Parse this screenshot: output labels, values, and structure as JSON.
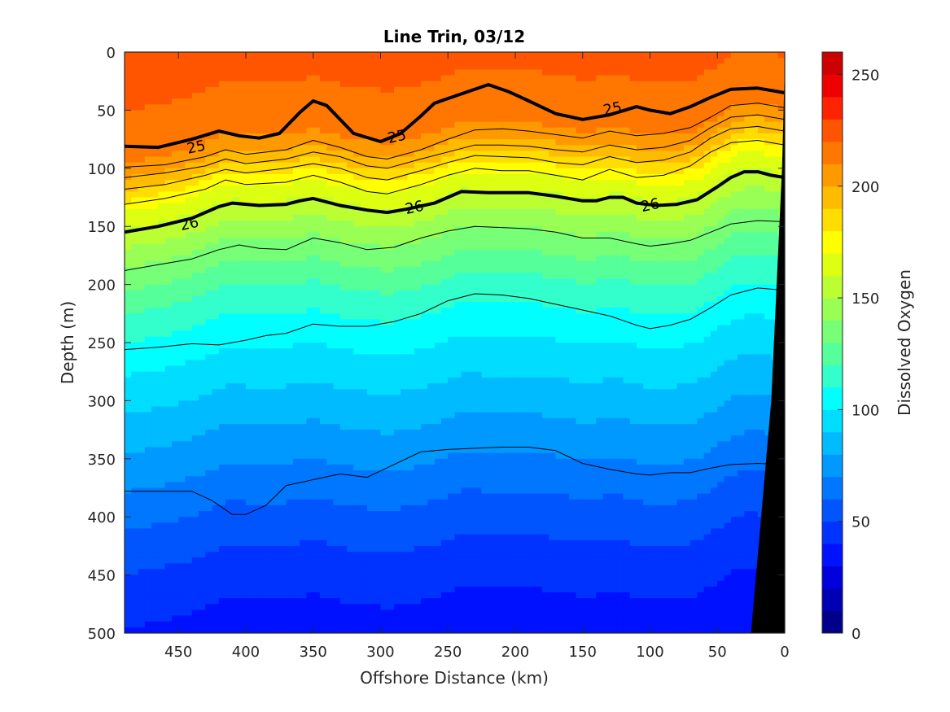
{
  "chart_data": {
    "type": "contour",
    "title": "Line Trin, 03/12",
    "xlabel": "Offshore Distance (km)",
    "ylabel": "Depth (m)",
    "colorbar_label": "Dissolved Oxygen",
    "xlim": [
      490,
      0
    ],
    "ylim": [
      0,
      500
    ],
    "x_reversed": true,
    "y_reversed": true,
    "xticks": [
      450,
      400,
      350,
      300,
      250,
      200,
      150,
      100,
      50,
      0
    ],
    "yticks": [
      0,
      50,
      100,
      150,
      200,
      250,
      300,
      350,
      400,
      450,
      500
    ],
    "colorbar": {
      "range": [
        0,
        260
      ],
      "ticks": [
        0,
        50,
        100,
        150,
        200,
        250
      ],
      "levels": [
        0,
        10,
        20,
        30,
        40,
        50,
        60,
        70,
        80,
        90,
        100,
        110,
        120,
        130,
        140,
        150,
        160,
        170,
        180,
        190,
        200,
        210,
        220,
        230,
        240,
        250,
        260
      ],
      "colors": [
        "#00008b",
        "#0000b4",
        "#0000dd",
        "#0011ff",
        "#0033ff",
        "#0055ff",
        "#0077ff",
        "#0099ff",
        "#00bbff",
        "#00ddff",
        "#00ffff",
        "#33ffcc",
        "#55ff99",
        "#77ff77",
        "#99ff55",
        "#bbff33",
        "#ddff11",
        "#ffff00",
        "#ffdd00",
        "#ffbb00",
        "#ff9900",
        "#ff7700",
        "#ff5500",
        "#ff2200",
        "#ee0000",
        "#cc0000",
        "#aa0000"
      ]
    },
    "oxygen_depth_profile": [
      {
        "depth": 0,
        "value": 222
      },
      {
        "depth": 50,
        "value": 218
      },
      {
        "depth": 70,
        "value": 210
      },
      {
        "depth": 90,
        "value": 195
      },
      {
        "depth": 110,
        "value": 172
      },
      {
        "depth": 130,
        "value": 158
      },
      {
        "depth": 160,
        "value": 140
      },
      {
        "depth": 200,
        "value": 120
      },
      {
        "depth": 240,
        "value": 104
      },
      {
        "depth": 280,
        "value": 92
      },
      {
        "depth": 320,
        "value": 80
      },
      {
        "depth": 360,
        "value": 68
      },
      {
        "depth": 400,
        "value": 56
      },
      {
        "depth": 440,
        "value": 46
      },
      {
        "depth": 480,
        "value": 38
      },
      {
        "depth": 500,
        "value": 34
      }
    ],
    "density_contours": [
      {
        "label": "25",
        "bold": true,
        "points": [
          [
            490,
            81
          ],
          [
            465,
            82
          ],
          [
            440,
            75
          ],
          [
            420,
            68
          ],
          [
            405,
            72
          ],
          [
            390,
            74
          ],
          [
            375,
            70
          ],
          [
            360,
            52
          ],
          [
            350,
            42
          ],
          [
            340,
            46
          ],
          [
            320,
            70
          ],
          [
            300,
            77
          ],
          [
            285,
            70
          ],
          [
            270,
            55
          ],
          [
            260,
            44
          ],
          [
            240,
            36
          ],
          [
            220,
            28
          ],
          [
            205,
            34
          ],
          [
            190,
            42
          ],
          [
            170,
            53
          ],
          [
            150,
            58
          ],
          [
            130,
            54
          ],
          [
            110,
            47
          ],
          [
            100,
            50
          ],
          [
            85,
            53
          ],
          [
            70,
            47
          ],
          [
            55,
            39
          ],
          [
            40,
            32
          ],
          [
            20,
            31
          ],
          [
            0,
            35
          ]
        ]
      },
      {
        "label": "",
        "bold": false,
        "points": [
          [
            490,
            99
          ],
          [
            460,
            97
          ],
          [
            430,
            90
          ],
          [
            415,
            84
          ],
          [
            400,
            88
          ],
          [
            370,
            84
          ],
          [
            350,
            76
          ],
          [
            330,
            82
          ],
          [
            310,
            90
          ],
          [
            295,
            92
          ],
          [
            270,
            84
          ],
          [
            250,
            75
          ],
          [
            230,
            67
          ],
          [
            210,
            66
          ],
          [
            190,
            68
          ],
          [
            170,
            71
          ],
          [
            150,
            74
          ],
          [
            130,
            68
          ],
          [
            110,
            72
          ],
          [
            90,
            70
          ],
          [
            70,
            65
          ],
          [
            55,
            56
          ],
          [
            40,
            46
          ],
          [
            20,
            44
          ],
          [
            0,
            48
          ]
        ]
      },
      {
        "label": "",
        "bold": false,
        "points": [
          [
            490,
            108
          ],
          [
            460,
            104
          ],
          [
            430,
            98
          ],
          [
            415,
            92
          ],
          [
            400,
            96
          ],
          [
            370,
            92
          ],
          [
            350,
            86
          ],
          [
            330,
            90
          ],
          [
            310,
            98
          ],
          [
            295,
            100
          ],
          [
            270,
            92
          ],
          [
            250,
            86
          ],
          [
            230,
            80
          ],
          [
            210,
            80
          ],
          [
            190,
            81
          ],
          [
            170,
            84
          ],
          [
            150,
            86
          ],
          [
            130,
            80
          ],
          [
            110,
            84
          ],
          [
            90,
            82
          ],
          [
            70,
            76
          ],
          [
            55,
            65
          ],
          [
            40,
            56
          ],
          [
            20,
            54
          ],
          [
            0,
            58
          ]
        ]
      },
      {
        "label": "",
        "bold": false,
        "points": [
          [
            490,
            118
          ],
          [
            460,
            114
          ],
          [
            430,
            106
          ],
          [
            415,
            101
          ],
          [
            400,
            104
          ],
          [
            370,
            100
          ],
          [
            350,
            96
          ],
          [
            330,
            100
          ],
          [
            310,
            108
          ],
          [
            295,
            110
          ],
          [
            270,
            102
          ],
          [
            250,
            95
          ],
          [
            230,
            89
          ],
          [
            210,
            90
          ],
          [
            190,
            91
          ],
          [
            170,
            95
          ],
          [
            150,
            97
          ],
          [
            130,
            90
          ],
          [
            110,
            95
          ],
          [
            90,
            93
          ],
          [
            70,
            86
          ],
          [
            55,
            74
          ],
          [
            40,
            66
          ],
          [
            20,
            64
          ],
          [
            0,
            68
          ]
        ]
      },
      {
        "label": "",
        "bold": false,
        "points": [
          [
            490,
            131
          ],
          [
            460,
            126
          ],
          [
            430,
            118
          ],
          [
            415,
            110
          ],
          [
            400,
            114
          ],
          [
            370,
            112
          ],
          [
            350,
            106
          ],
          [
            330,
            112
          ],
          [
            310,
            120
          ],
          [
            295,
            122
          ],
          [
            270,
            114
          ],
          [
            250,
            106
          ],
          [
            230,
            100
          ],
          [
            210,
            102
          ],
          [
            190,
            102
          ],
          [
            170,
            106
          ],
          [
            150,
            110
          ],
          [
            130,
            101
          ],
          [
            110,
            108
          ],
          [
            90,
            106
          ],
          [
            70,
            98
          ],
          [
            55,
            86
          ],
          [
            40,
            78
          ],
          [
            20,
            76
          ],
          [
            0,
            80
          ]
        ]
      },
      {
        "label": "26",
        "bold": true,
        "points": [
          [
            490,
            155
          ],
          [
            465,
            150
          ],
          [
            440,
            143
          ],
          [
            420,
            133
          ],
          [
            410,
            130
          ],
          [
            390,
            132
          ],
          [
            370,
            131
          ],
          [
            360,
            128
          ],
          [
            350,
            126
          ],
          [
            330,
            132
          ],
          [
            310,
            136
          ],
          [
            295,
            138
          ],
          [
            280,
            135
          ],
          [
            260,
            130
          ],
          [
            240,
            120
          ],
          [
            220,
            121
          ],
          [
            200,
            121
          ],
          [
            190,
            121
          ],
          [
            170,
            124
          ],
          [
            150,
            128
          ],
          [
            140,
            128
          ],
          [
            130,
            125
          ],
          [
            120,
            125
          ],
          [
            110,
            130
          ],
          [
            95,
            132
          ],
          [
            80,
            131
          ],
          [
            65,
            127
          ],
          [
            50,
            116
          ],
          [
            40,
            108
          ],
          [
            30,
            103
          ],
          [
            20,
            103
          ],
          [
            10,
            106
          ],
          [
            0,
            108
          ]
        ]
      },
      {
        "label": "",
        "bold": false,
        "points": [
          [
            490,
            188
          ],
          [
            465,
            183
          ],
          [
            440,
            178
          ],
          [
            420,
            170
          ],
          [
            405,
            166
          ],
          [
            390,
            169
          ],
          [
            370,
            170
          ],
          [
            360,
            165
          ],
          [
            350,
            160
          ],
          [
            330,
            164
          ],
          [
            310,
            170
          ],
          [
            290,
            168
          ],
          [
            270,
            160
          ],
          [
            250,
            154
          ],
          [
            230,
            150
          ],
          [
            210,
            151
          ],
          [
            190,
            152
          ],
          [
            170,
            155
          ],
          [
            150,
            160
          ],
          [
            130,
            160
          ],
          [
            110,
            165
          ],
          [
            100,
            167
          ],
          [
            85,
            165
          ],
          [
            70,
            162
          ],
          [
            55,
            155
          ],
          [
            40,
            148
          ],
          [
            20,
            145
          ],
          [
            0,
            146
          ]
        ]
      },
      {
        "label": "",
        "bold": false,
        "points": [
          [
            490,
            256
          ],
          [
            465,
            254
          ],
          [
            440,
            251
          ],
          [
            420,
            252
          ],
          [
            400,
            248
          ],
          [
            385,
            244
          ],
          [
            370,
            242
          ],
          [
            350,
            234
          ],
          [
            330,
            236
          ],
          [
            310,
            236
          ],
          [
            290,
            232
          ],
          [
            270,
            225
          ],
          [
            250,
            214
          ],
          [
            230,
            208
          ],
          [
            210,
            209
          ],
          [
            190,
            212
          ],
          [
            170,
            217
          ],
          [
            150,
            222
          ],
          [
            130,
            227
          ],
          [
            110,
            235
          ],
          [
            100,
            238
          ],
          [
            85,
            235
          ],
          [
            70,
            230
          ],
          [
            55,
            220
          ],
          [
            40,
            209
          ],
          [
            20,
            203
          ],
          [
            0,
            205
          ]
        ]
      },
      {
        "label": "",
        "bold": false,
        "points": [
          [
            490,
            378
          ],
          [
            460,
            378
          ],
          [
            440,
            378
          ],
          [
            425,
            386
          ],
          [
            410,
            398
          ],
          [
            400,
            398
          ],
          [
            385,
            390
          ],
          [
            370,
            373
          ],
          [
            350,
            368
          ],
          [
            330,
            363
          ],
          [
            310,
            366
          ],
          [
            290,
            355
          ],
          [
            270,
            344
          ],
          [
            250,
            342
          ],
          [
            230,
            341
          ],
          [
            210,
            340
          ],
          [
            190,
            340
          ],
          [
            170,
            343
          ],
          [
            150,
            354
          ],
          [
            130,
            359
          ],
          [
            110,
            363
          ],
          [
            100,
            364
          ],
          [
            85,
            362
          ],
          [
            70,
            362
          ],
          [
            55,
            358
          ],
          [
            40,
            355
          ],
          [
            20,
            354
          ],
          [
            0,
            355
          ]
        ]
      }
    ],
    "label_positions": [
      {
        "text": "25",
        "x": 437,
        "y": 81
      },
      {
        "text": "25",
        "x": 288,
        "y": 72
      },
      {
        "text": "25",
        "x": 128,
        "y": 48
      },
      {
        "text": "26",
        "x": 275,
        "y": 133
      },
      {
        "text": "26",
        "x": 100,
        "y": 131
      },
      {
        "text": "26",
        "x": 442,
        "y": 147
      }
    ],
    "bathymetry": {
      "label": "",
      "points": [
        [
          0,
          12
        ],
        [
          2,
          100
        ],
        [
          10,
          300
        ],
        [
          25,
          500
        ],
        [
          0,
          500
        ]
      ]
    }
  }
}
